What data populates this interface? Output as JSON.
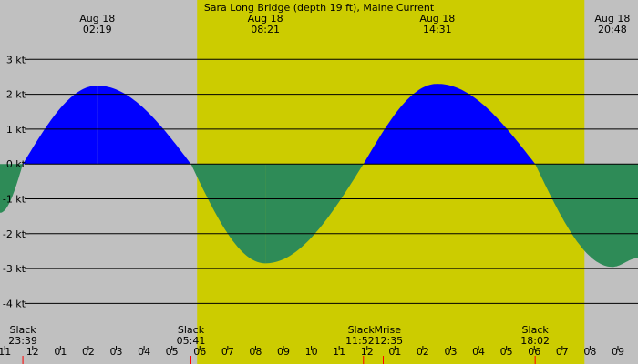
{
  "chart_data": {
    "type": "area",
    "title": "Sara Long Bridge (depth 19 ft), Maine Current",
    "y_unit": "kt",
    "ylim": [
      -4.1,
      3.7
    ],
    "y_ticks": [
      {
        "value": 3,
        "label": "3 kt"
      },
      {
        "value": 2,
        "label": "2 kt"
      },
      {
        "value": 1,
        "label": "1 kt"
      },
      {
        "value": 0,
        "label": "0 kt"
      },
      {
        "value": -1,
        "label": "-1 kt"
      },
      {
        "value": -2,
        "label": "-2 kt"
      },
      {
        "value": -3,
        "label": "-3 kt"
      },
      {
        "value": -4,
        "label": "-4 kt"
      }
    ],
    "x_range_hours": [
      10.83,
      33.72
    ],
    "daylight": {
      "start": 17.9,
      "end": 31.8
    },
    "x_hour_ticks": [
      {
        "hour": 11,
        "label": "11"
      },
      {
        "hour": 12,
        "label": "12"
      },
      {
        "hour": 13,
        "label": "01"
      },
      {
        "hour": 14,
        "label": "02"
      },
      {
        "hour": 15,
        "label": "03"
      },
      {
        "hour": 16,
        "label": "04"
      },
      {
        "hour": 17,
        "label": "05"
      },
      {
        "hour": 18,
        "label": "06"
      },
      {
        "hour": 19,
        "label": "07"
      },
      {
        "hour": 20,
        "label": "08"
      },
      {
        "hour": 21,
        "label": "09"
      },
      {
        "hour": 22,
        "label": "10"
      },
      {
        "hour": 23,
        "label": "11"
      },
      {
        "hour": 24,
        "label": "12"
      },
      {
        "hour": 25,
        "label": "01"
      },
      {
        "hour": 26,
        "label": "02"
      },
      {
        "hour": 27,
        "label": "03"
      },
      {
        "hour": 28,
        "label": "04"
      },
      {
        "hour": 29,
        "label": "05"
      },
      {
        "hour": 30,
        "label": "06"
      },
      {
        "hour": 31,
        "label": "07"
      },
      {
        "hour": 32,
        "label": "08"
      },
      {
        "hour": 33,
        "label": "09"
      }
    ],
    "peaks": [
      {
        "hour": 14.32,
        "date": "Aug 18",
        "time": "02:19"
      },
      {
        "hour": 20.35,
        "date": "Aug 18",
        "time": "08:21"
      },
      {
        "hour": 26.52,
        "date": "Aug 18",
        "time": "14:31"
      },
      {
        "hour": 32.8,
        "date": "Aug 18",
        "time": "20:48"
      }
    ],
    "bottom_events": [
      {
        "hour": 11.65,
        "label": "Slack",
        "time": "23:39"
      },
      {
        "hour": 17.68,
        "label": "Slack",
        "time": "05:41"
      },
      {
        "hour": 23.87,
        "label": "Slack",
        "time": "11:52"
      },
      {
        "hour": 24.58,
        "label": "Mrise",
        "time": "12:35"
      },
      {
        "hour": 30.03,
        "label": "Slack",
        "time": "18:02"
      }
    ],
    "series": [
      {
        "x": [
          10.83,
          11.65,
          14.32,
          17.68,
          20.35,
          23.87,
          26.52,
          30.03,
          32.8,
          33.72
        ],
        "y": [
          -1.4,
          0,
          2.25,
          0,
          -2.85,
          0,
          2.3,
          0,
          -2.95,
          -2.7
        ]
      }
    ],
    "colors": {
      "background": "#c0c0c0",
      "daylight": "#cccc00",
      "flood": "#0000ff",
      "ebb": "#2e8b57",
      "marker_red": "#ff0000"
    },
    "grid": true
  }
}
